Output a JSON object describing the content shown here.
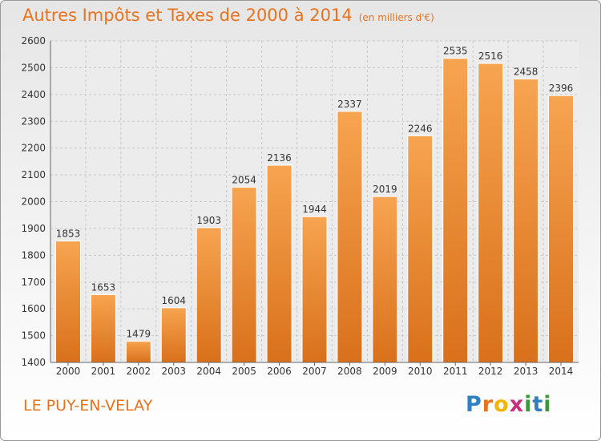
{
  "header": {
    "title": "Autres Impôts et Taxes de 2000 à 2014",
    "subtitle": "(en milliers d'€)"
  },
  "footer": {
    "town": "LE PUY-EN-VELAY",
    "logo": {
      "letters": [
        "P",
        "r",
        "o",
        "x",
        "i",
        "t",
        "i"
      ],
      "colors": [
        "#2f7fc1",
        "#e8731e",
        "#f2b500",
        "#cc2e7f",
        "#3a9a3a",
        "#2f7fc1",
        "#3a9a3a"
      ]
    }
  },
  "colors": {
    "bar_light": "#f7a450",
    "bar_dark": "#d9701b",
    "accent": "#e8731e",
    "grid": "#c8c8c8"
  },
  "chart_data": {
    "type": "bar",
    "title": "Autres Impôts et Taxes de 2000 à 2014",
    "subtitle": "(en milliers d'€)",
    "xlabel": "",
    "ylabel": "",
    "categories": [
      "2000",
      "2001",
      "2002",
      "2003",
      "2004",
      "2005",
      "2006",
      "2007",
      "2008",
      "2009",
      "2010",
      "2011",
      "2012",
      "2013",
      "2014"
    ],
    "values": [
      1853,
      1653,
      1479,
      1604,
      1903,
      2054,
      2136,
      1944,
      2337,
      2019,
      2246,
      2535,
      2516,
      2458,
      2396
    ],
    "ylim": [
      1400,
      2600
    ],
    "yticks": [
      1400,
      1500,
      1600,
      1700,
      1800,
      1900,
      2000,
      2100,
      2200,
      2300,
      2400,
      2500,
      2600
    ],
    "grid": true,
    "legend": "none"
  }
}
